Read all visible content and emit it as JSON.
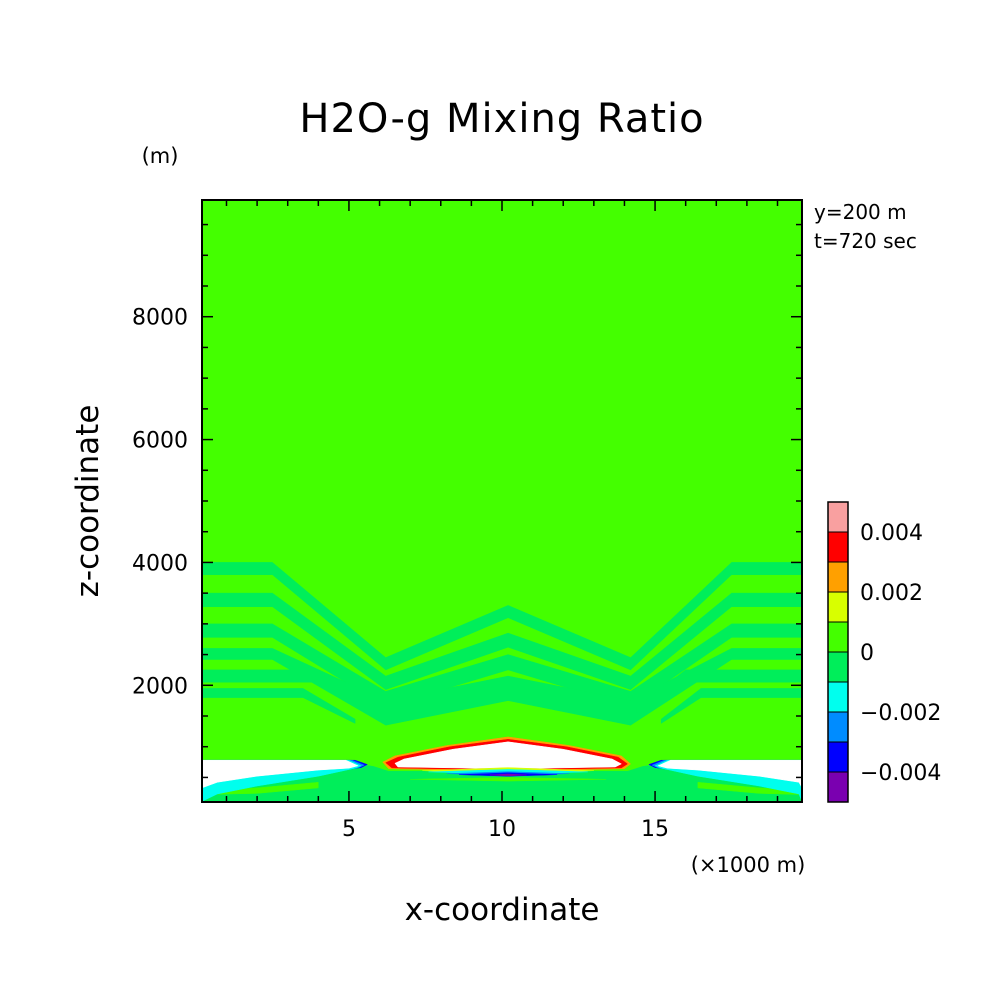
{
  "chart_data": {
    "type": "heatmap",
    "title": "H2O-g Mixing Ratio",
    "xlabel": "x-coordinate",
    "ylabel": "z-coordinate",
    "x_unit": "(×1000 m)",
    "y_unit": "(m)",
    "annotations": [
      "y=200 m",
      "t=720 sec"
    ],
    "xlim": [
      0.2,
      19.8
    ],
    "ylim": [
      100,
      9900
    ],
    "x_ticks": [
      5,
      10,
      15
    ],
    "y_ticks": [
      2000,
      4000,
      6000,
      8000
    ],
    "x_tick_labels": [
      "5",
      "10",
      "15"
    ],
    "y_tick_labels": [
      "2000",
      "4000",
      "6000",
      "8000"
    ],
    "background_level_color": "#44ff00",
    "colorbar": {
      "levels": [
        {
          "lo": 0.004,
          "hi": 0.005,
          "color": "#f9a0a0"
        },
        {
          "lo": 0.003,
          "hi": 0.004,
          "color": "#ff0000"
        },
        {
          "lo": 0.002,
          "hi": 0.003,
          "color": "#ffa000"
        },
        {
          "lo": 0.001,
          "hi": 0.002,
          "color": "#d8ff00"
        },
        {
          "lo": 0.0,
          "hi": 0.001,
          "color": "#44ff00"
        },
        {
          "lo": -0.001,
          "hi": 0.0,
          "color": "#00ee5a"
        },
        {
          "lo": -0.002,
          "hi": -0.001,
          "color": "#00ffee"
        },
        {
          "lo": -0.003,
          "hi": -0.002,
          "color": "#008cff"
        },
        {
          "lo": -0.004,
          "hi": -0.003,
          "color": "#0000ff"
        },
        {
          "lo": -0.005,
          "hi": -0.004,
          "color": "#7a00b0"
        }
      ],
      "ticks": [
        0.004,
        0.002,
        0.0,
        -0.002,
        -0.004
      ],
      "tick_labels": [
        "0.004",
        "0.002",
        "0",
        "−0.002",
        "−0.004"
      ]
    },
    "regions": [
      {
        "kind": "band",
        "color": "#00ee5a",
        "points": [
          [
            0.2,
            4000
          ],
          [
            2.5,
            4000
          ],
          [
            6.2,
            2450
          ],
          [
            10.2,
            3300
          ],
          [
            14.2,
            2450
          ],
          [
            17.5,
            4000
          ],
          [
            19.8,
            4000
          ],
          [
            19.8,
            3800
          ],
          [
            17.5,
            3800
          ],
          [
            14.2,
            2250
          ],
          [
            10.2,
            3100
          ],
          [
            6.2,
            2250
          ],
          [
            2.5,
            3800
          ],
          [
            0.2,
            3800
          ]
        ]
      },
      {
        "kind": "band",
        "color": "#00ee5a",
        "points": [
          [
            0.2,
            3500
          ],
          [
            2.5,
            3500
          ],
          [
            6.2,
            2150
          ],
          [
            10.2,
            2850
          ],
          [
            14.2,
            2150
          ],
          [
            17.5,
            3500
          ],
          [
            19.8,
            3500
          ],
          [
            19.8,
            3280
          ],
          [
            17.5,
            3280
          ],
          [
            14.2,
            1930
          ],
          [
            10.2,
            2620
          ],
          [
            6.2,
            1930
          ],
          [
            2.5,
            3280
          ],
          [
            0.2,
            3280
          ]
        ]
      },
      {
        "kind": "band",
        "color": "#00ee5a",
        "points": [
          [
            0.2,
            3000
          ],
          [
            2.5,
            3000
          ],
          [
            6.2,
            1900
          ],
          [
            10.2,
            2500
          ],
          [
            14.2,
            1900
          ],
          [
            17.5,
            3000
          ],
          [
            19.8,
            3000
          ],
          [
            19.8,
            2780
          ],
          [
            17.5,
            2780
          ],
          [
            14.2,
            1650
          ],
          [
            10.2,
            2250
          ],
          [
            6.2,
            1650
          ],
          [
            2.5,
            2780
          ],
          [
            0.2,
            2780
          ]
        ]
      },
      {
        "kind": "band",
        "color": "#00ee5a",
        "points": [
          [
            0.2,
            2600
          ],
          [
            2.5,
            2600
          ],
          [
            6.2,
            1750
          ],
          [
            10.2,
            2150
          ],
          [
            14.2,
            1750
          ],
          [
            17.5,
            2600
          ],
          [
            19.8,
            2600
          ],
          [
            19.8,
            2420
          ],
          [
            17.5,
            2420
          ],
          [
            14.2,
            1350
          ],
          [
            10.2,
            1750
          ],
          [
            6.2,
            1350
          ],
          [
            2.5,
            2420
          ],
          [
            0.2,
            2420
          ]
        ]
      },
      {
        "kind": "band",
        "color": "#00ee5a",
        "points": [
          [
            0.2,
            2250
          ],
          [
            4.0,
            2250
          ],
          [
            6.0,
            1650
          ],
          [
            6.0,
            1550
          ],
          [
            4.0,
            2050
          ],
          [
            0.2,
            2050
          ]
        ]
      },
      {
        "kind": "band",
        "color": "#00ee5a",
        "points": [
          [
            19.8,
            2250
          ],
          [
            16.0,
            2250
          ],
          [
            14.4,
            1650
          ],
          [
            14.4,
            1550
          ],
          [
            16.0,
            2050
          ],
          [
            19.8,
            2050
          ]
        ]
      },
      {
        "kind": "band",
        "color": "#00ee5a",
        "points": [
          [
            0.2,
            1950
          ],
          [
            3.5,
            1950
          ],
          [
            5.2,
            1450
          ],
          [
            5.2,
            1380
          ],
          [
            3.5,
            1800
          ],
          [
            0.2,
            1800
          ]
        ]
      },
      {
        "kind": "band",
        "color": "#00ee5a",
        "points": [
          [
            19.8,
            1950
          ],
          [
            16.5,
            1950
          ],
          [
            15.2,
            1450
          ],
          [
            15.2,
            1380
          ],
          [
            16.5,
            1800
          ],
          [
            19.8,
            1800
          ]
        ]
      },
      {
        "kind": "band",
        "color": "#00ee5a",
        "points": [
          [
            0.2,
            780
          ],
          [
            4.5,
            780
          ],
          [
            5.8,
            680
          ],
          [
            6.3,
            600
          ],
          [
            14.1,
            600
          ],
          [
            14.6,
            680
          ],
          [
            16.0,
            780
          ],
          [
            19.8,
            780
          ],
          [
            19.8,
            100
          ],
          [
            0.2,
            100
          ]
        ]
      },
      {
        "kind": "blob",
        "color": "#ffa000",
        "points": [
          [
            6.1,
            750
          ],
          [
            6.5,
            850
          ],
          [
            8.2,
            1020
          ],
          [
            10.2,
            1160
          ],
          [
            12.2,
            1020
          ],
          [
            13.9,
            850
          ],
          [
            14.2,
            720
          ],
          [
            14.0,
            640
          ],
          [
            10.2,
            600
          ],
          [
            6.3,
            640
          ]
        ]
      },
      {
        "kind": "blob",
        "color": "#ff0000",
        "points": [
          [
            6.2,
            740
          ],
          [
            6.6,
            830
          ],
          [
            8.3,
            1000
          ],
          [
            10.2,
            1120
          ],
          [
            12.1,
            1000
          ],
          [
            13.8,
            830
          ],
          [
            14.1,
            720
          ],
          [
            13.9,
            655
          ],
          [
            10.2,
            620
          ],
          [
            6.4,
            655
          ]
        ]
      },
      {
        "kind": "blob",
        "color": "#ffffff",
        "points": [
          [
            6.5,
            730
          ],
          [
            6.8,
            800
          ],
          [
            8.4,
            960
          ],
          [
            10.2,
            1080
          ],
          [
            12.0,
            960
          ],
          [
            13.6,
            800
          ],
          [
            13.9,
            720
          ],
          [
            13.7,
            670
          ],
          [
            10.2,
            640
          ],
          [
            6.6,
            670
          ]
        ]
      },
      {
        "kind": "blob",
        "color": "#d8ff00",
        "points": [
          [
            7.4,
            610
          ],
          [
            10.2,
            660
          ],
          [
            13.0,
            610
          ],
          [
            10.2,
            560
          ]
        ]
      },
      {
        "kind": "blob",
        "color": "#00ffee",
        "points": [
          [
            7.6,
            590
          ],
          [
            10.2,
            630
          ],
          [
            12.8,
            590
          ],
          [
            10.2,
            550
          ]
        ]
      },
      {
        "kind": "blob",
        "color": "#008cff",
        "points": [
          [
            8.2,
            560
          ],
          [
            10.2,
            595
          ],
          [
            12.2,
            560
          ],
          [
            10.2,
            530
          ]
        ]
      },
      {
        "kind": "blob",
        "color": "#0000ff",
        "points": [
          [
            8.6,
            545
          ],
          [
            10.2,
            575
          ],
          [
            11.8,
            545
          ],
          [
            10.2,
            520
          ]
        ]
      },
      {
        "kind": "blob",
        "color": "#7a00b0",
        "points": [
          [
            9.6,
            540
          ],
          [
            10.2,
            555
          ],
          [
            10.8,
            540
          ],
          [
            10.2,
            525
          ]
        ]
      },
      {
        "kind": "blob",
        "color": "#44ff00",
        "points": [
          [
            7.0,
            470
          ],
          [
            10.2,
            500
          ],
          [
            13.4,
            470
          ],
          [
            10.2,
            440
          ]
        ]
      },
      {
        "kind": "blob",
        "color": "#44ff00",
        "points": [
          [
            0.2,
            300
          ],
          [
            2.0,
            330
          ],
          [
            4.0,
            420
          ],
          [
            4.0,
            330
          ],
          [
            2.0,
            240
          ],
          [
            0.2,
            220
          ]
        ]
      },
      {
        "kind": "blob",
        "color": "#44ff00",
        "points": [
          [
            19.8,
            300
          ],
          [
            18.4,
            330
          ],
          [
            16.4,
            420
          ],
          [
            16.4,
            330
          ],
          [
            18.4,
            240
          ],
          [
            19.8,
            220
          ]
        ]
      },
      {
        "kind": "blob",
        "color": "#0000ff",
        "points": [
          [
            0.2,
            780
          ],
          [
            5.2,
            780
          ],
          [
            5.6,
            710
          ],
          [
            5.4,
            660
          ],
          [
            4.0,
            560
          ],
          [
            2.0,
            440
          ],
          [
            0.7,
            330
          ],
          [
            0.2,
            250
          ]
        ]
      },
      {
        "kind": "blob",
        "color": "#008cff",
        "points": [
          [
            0.2,
            780
          ],
          [
            5.1,
            780
          ],
          [
            5.5,
            700
          ],
          [
            5.3,
            655
          ],
          [
            4.0,
            540
          ],
          [
            2.0,
            400
          ],
          [
            0.7,
            280
          ],
          [
            0.2,
            170
          ]
        ]
      },
      {
        "kind": "blob",
        "color": "#00ffee",
        "points": [
          [
            0.2,
            780
          ],
          [
            5.0,
            780
          ],
          [
            5.4,
            690
          ],
          [
            5.2,
            650
          ],
          [
            4.0,
            520
          ],
          [
            2.0,
            360
          ],
          [
            0.7,
            230
          ],
          [
            0.2,
            110
          ]
        ]
      },
      {
        "kind": "blob",
        "color": "#0000ff",
        "points": [
          [
            19.8,
            780
          ],
          [
            15.2,
            780
          ],
          [
            14.8,
            710
          ],
          [
            15.0,
            660
          ],
          [
            16.4,
            560
          ],
          [
            18.4,
            440
          ],
          [
            19.7,
            330
          ],
          [
            19.8,
            250
          ]
        ]
      },
      {
        "kind": "blob",
        "color": "#008cff",
        "points": [
          [
            19.8,
            780
          ],
          [
            15.3,
            780
          ],
          [
            14.9,
            700
          ],
          [
            15.1,
            655
          ],
          [
            16.4,
            540
          ],
          [
            18.4,
            400
          ],
          [
            19.7,
            280
          ],
          [
            19.8,
            170
          ]
        ]
      },
      {
        "kind": "blob",
        "color": "#00ffee",
        "points": [
          [
            19.8,
            780
          ],
          [
            15.4,
            780
          ],
          [
            15.0,
            690
          ],
          [
            15.2,
            650
          ],
          [
            16.4,
            520
          ],
          [
            18.4,
            360
          ],
          [
            19.7,
            230
          ],
          [
            19.8,
            110
          ]
        ]
      },
      {
        "kind": "blob",
        "color": "#ffffff",
        "points": [
          [
            0.2,
            780
          ],
          [
            4.9,
            780
          ],
          [
            5.3,
            690
          ],
          [
            5.0,
            650
          ],
          [
            4.0,
            620
          ],
          [
            2.0,
            520
          ],
          [
            0.7,
            420
          ],
          [
            0.2,
            330
          ]
        ]
      },
      {
        "kind": "blob",
        "color": "#ffffff",
        "points": [
          [
            19.8,
            780
          ],
          [
            15.5,
            780
          ],
          [
            15.1,
            690
          ],
          [
            15.4,
            650
          ],
          [
            16.4,
            620
          ],
          [
            18.4,
            520
          ],
          [
            19.7,
            420
          ],
          [
            19.8,
            330
          ]
        ]
      }
    ]
  }
}
